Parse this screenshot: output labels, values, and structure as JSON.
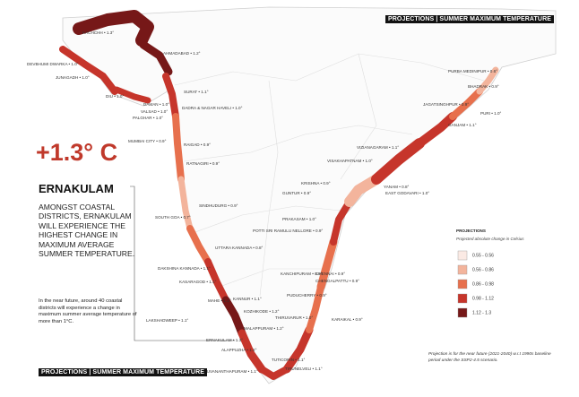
{
  "header": {
    "badge_top": "PROJECTIONS | SUMMER MAXIMUM TEMPERATURE",
    "badge_bottom": "PROJECTIONS | SUMMER MAXIMUM TEMPERATURE"
  },
  "highlight": {
    "value": "+1.3° C",
    "district": "ERNAKULAM",
    "statement": "AMONGST COASTAL DISTRICTS, ERNAKULAM WILL EXPERIENCE THE HIGHEST CHANGE IN MAXIMUM AVERAGE SUMMER TEMPERATURE.",
    "note": "In the near future, around 40 coastal districts will experience a change in maximum summer average temperature of more than 1°C."
  },
  "legend": {
    "title": "PROJECTIONS",
    "subtitle": "Projected absolute change in Celsius",
    "items": [
      {
        "label": "0.55 - 0.56",
        "color": "#fbeae4"
      },
      {
        "label": "0.56 - 0.86",
        "color": "#f3b49c"
      },
      {
        "label": "0.86 - 0.98",
        "color": "#e7704d"
      },
      {
        "label": "0.98 - 1.12",
        "color": "#c6352b"
      },
      {
        "label": "1.12 - 1.3",
        "color": "#761818"
      }
    ]
  },
  "footnote": "Projection is for the near future (2021-2040) w.r.t 1990s baseline period under the SSP2-4.5 scenario.",
  "districts": [
    "KACHCHH • 1.3°",
    "DEVBHUMI DWARKA • 1.0°",
    "AHMADABAD • 1.2°",
    "JUNAGADH • 1.0°",
    "DIU • 1.0°",
    "SURAT • 1.1°",
    "DAMAN • 1.0°",
    "VALSAD • 1.0°",
    "DADRA & NAGAR HAVELI • 1.0°",
    "PALGHAR • 1.0°",
    "MUMBAI CITY • 0.9°",
    "RAIGAD • 0.9°",
    "RATNAGIRI • 0.9°",
    "SINDHUDURG • 0.9°",
    "SOUTH GOA • 0.7°",
    "UTTARA KANNADA • 0.8°",
    "DAKSHINA KANNADA • 1.1°",
    "KASARAGOD • 1.1°",
    "KANNUR • 1.1°",
    "MAHE • 1.1°",
    "KOZHIKODE • 1.2°",
    "MALAPPURAM • 1.2°",
    "LAKSHADWEEP • 1.1°",
    "ERNAKULAM • 1.3°",
    "ALAPPUZHA • 1.2°",
    "THIRUVANANTHAPURAM • 1.1°",
    "TIRUNELVELI • 1.1°",
    "TUTICORIN • 1.1°",
    "PURBA MEDINIPUR • 0.6°",
    "BHADRAK • 0.9°",
    "JAGATSINGHPUR • 0.9°",
    "PURI • 1.0°",
    "GANJAM • 1.1°",
    "VIZIANAGARAM • 1.1°",
    "VISAKHAPATNAM • 1.0°",
    "KRISHNA • 0.9°",
    "YANAM • 0.8°",
    "EAST GODAVARI • 1.0°",
    "GUNTUR • 0.9°",
    "PRAKASAM • 1.0°",
    "POTTI SRI RAMULU NELLORE • 0.9°",
    "KANCHIPURAM • 0.9°",
    "CHENNAI • 0.9°",
    "CHENGALPATTU • 0.9°",
    "PUDUCHERRY • 0.9°",
    "THIRUVARUR • 1.0°",
    "KARAIKAL • 0.9°"
  ]
}
